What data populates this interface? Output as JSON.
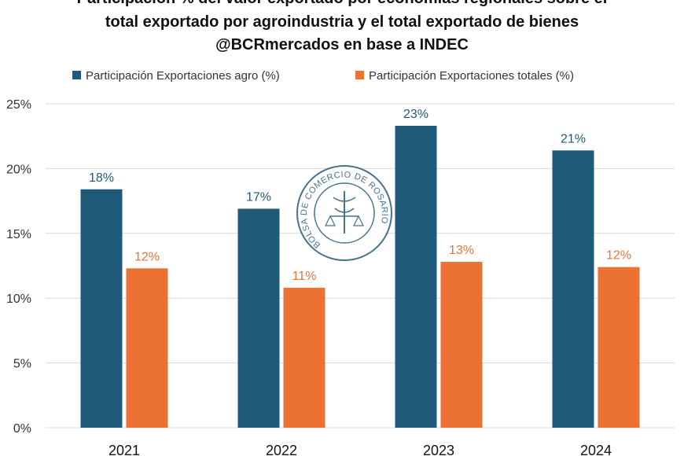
{
  "chart_data": {
    "type": "bar",
    "title_lines": [
      "Participación % del valor exportado por economías regionales sobre el",
      "total exportado por agroindustria y el total exportado de bienes",
      "@BCRmercados en base a INDEC"
    ],
    "categories": [
      "2021",
      "2022",
      "2023",
      "2024"
    ],
    "series": [
      {
        "name": "Participación Exportaciones agro (%)",
        "color": "#1f5a7a",
        "values": [
          18.4,
          16.9,
          23.3,
          21.4
        ],
        "labels": [
          "18%",
          "17%",
          "23%",
          "21%"
        ]
      },
      {
        "name": "Participación Exportaciones totales (%)",
        "color": "#ec7234",
        "values": [
          12.3,
          10.8,
          12.8,
          12.4
        ],
        "labels": [
          "12%",
          "11%",
          "13%",
          "12%"
        ]
      }
    ],
    "yticks": [
      "0%",
      "5%",
      "10%",
      "15%",
      "20%",
      "25%"
    ],
    "ylim": [
      0,
      25
    ],
    "grid": true,
    "legend_position": "top",
    "xlabel": "",
    "ylabel": ""
  },
  "watermark": {
    "text": "BOLSA DE COMERCIO DE ROSARIO",
    "color": "#2a5a78"
  },
  "colors": {
    "grid": "#d9d9d9",
    "tick_text": "#333333"
  }
}
